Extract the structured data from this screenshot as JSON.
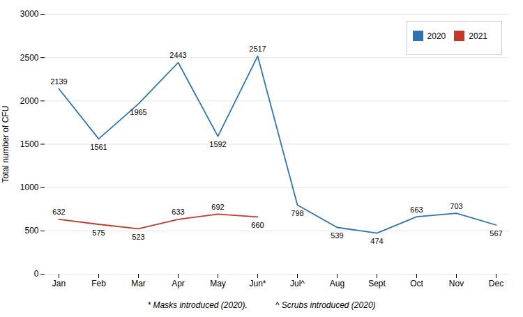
{
  "chart_data": {
    "type": "line",
    "categories": [
      "Jan",
      "Feb",
      "Mar",
      "Apr",
      "May",
      "Jun*",
      "Jul^",
      "Aug",
      "Sept",
      "Oct",
      "Nov",
      "Dec"
    ],
    "series": [
      {
        "name": "2020",
        "color": "#2e74b5",
        "values": [
          2139,
          1561,
          1965,
          2443,
          1592,
          2517,
          798,
          539,
          474,
          663,
          703,
          567
        ]
      },
      {
        "name": "2021",
        "color": "#c0392b",
        "values": [
          632,
          575,
          523,
          633,
          692,
          660,
          null,
          null,
          null,
          null,
          null,
          null
        ]
      }
    ],
    "ylabel": "Total number of CFU",
    "ylim": [
      0,
      3000
    ],
    "yticks": [
      0,
      500,
      1000,
      1500,
      2000,
      2500,
      3000
    ],
    "grid": true,
    "legend": "upper right",
    "data_labels": true,
    "annotations": [
      "* Masks introduced (2020).",
      "^ Scrubs introduced (2020)"
    ]
  }
}
